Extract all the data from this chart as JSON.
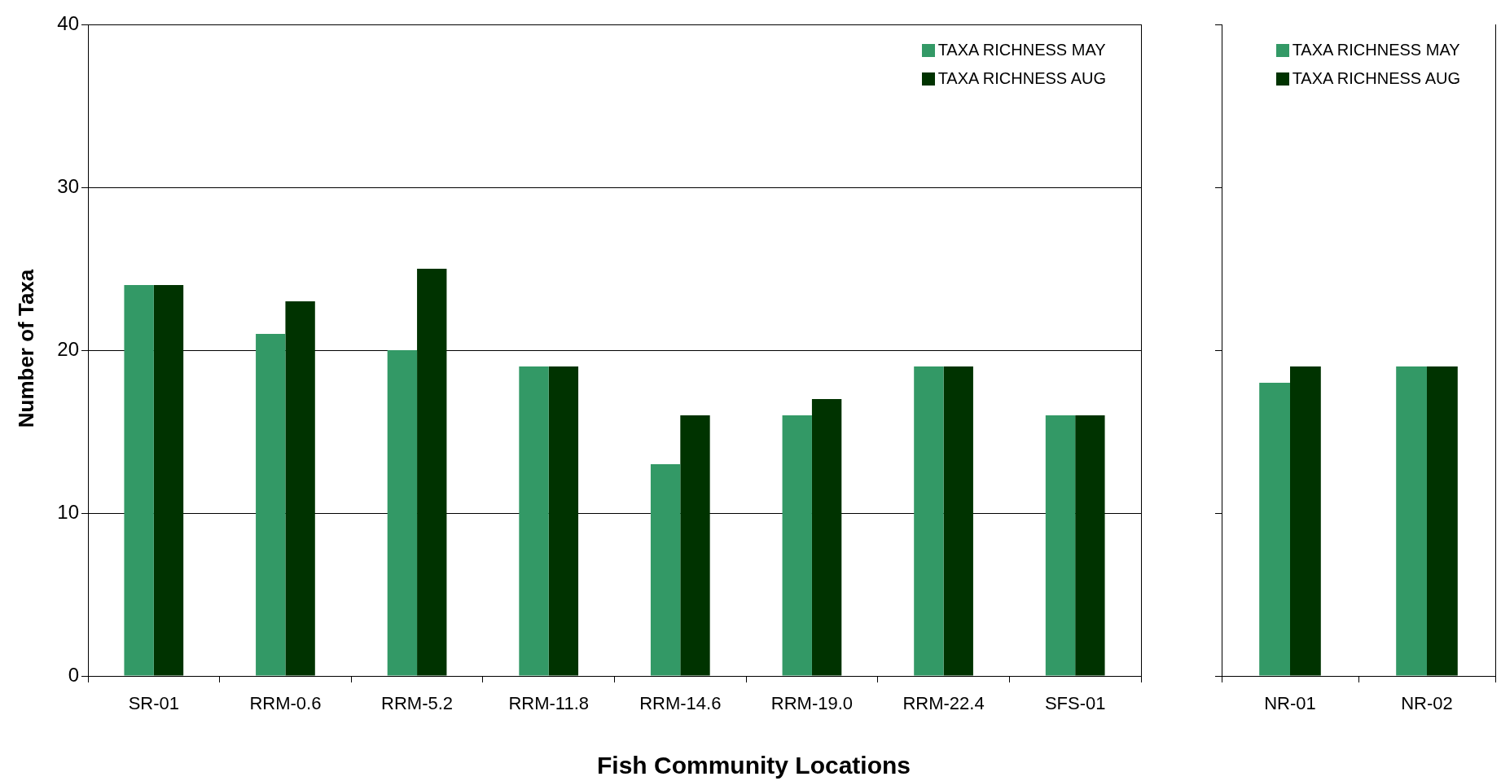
{
  "chart_data": [
    {
      "type": "bar",
      "ylabel": "Number of Taxa",
      "xlabel": "Fish Community Locations",
      "categories": [
        "SR-01",
        "RRM-0.6",
        "RRM-5.2",
        "RRM-11.8",
        "RRM-14.6",
        "RRM-19.0",
        "RRM-22.4",
        "SFS-01"
      ],
      "series": [
        {
          "name": "TAXA RICHNESS MAY",
          "color": "#339966",
          "values": [
            24,
            21,
            20,
            19,
            13,
            16,
            19,
            16
          ]
        },
        {
          "name": "TAXA RICHNESS AUG",
          "color": "#003300",
          "values": [
            24,
            23,
            25,
            19,
            16,
            17,
            19,
            16
          ]
        }
      ],
      "ylim": [
        0,
        40
      ],
      "yticks": [
        0,
        10,
        20,
        30,
        40
      ],
      "grid": "y",
      "legend": "top right"
    },
    {
      "type": "bar",
      "categories": [
        "NR-01",
        "NR-02"
      ],
      "series": [
        {
          "name": "TAXA RICHNESS MAY",
          "color": "#339966",
          "values": [
            18,
            19
          ]
        },
        {
          "name": "TAXA RICHNESS AUG",
          "color": "#003300",
          "values": [
            19,
            19
          ]
        }
      ],
      "ylim": [
        0,
        40
      ],
      "yticks": [
        0,
        10,
        20,
        30,
        40
      ],
      "grid": false,
      "legend": "top right",
      "tick_labels": "x"
    }
  ]
}
